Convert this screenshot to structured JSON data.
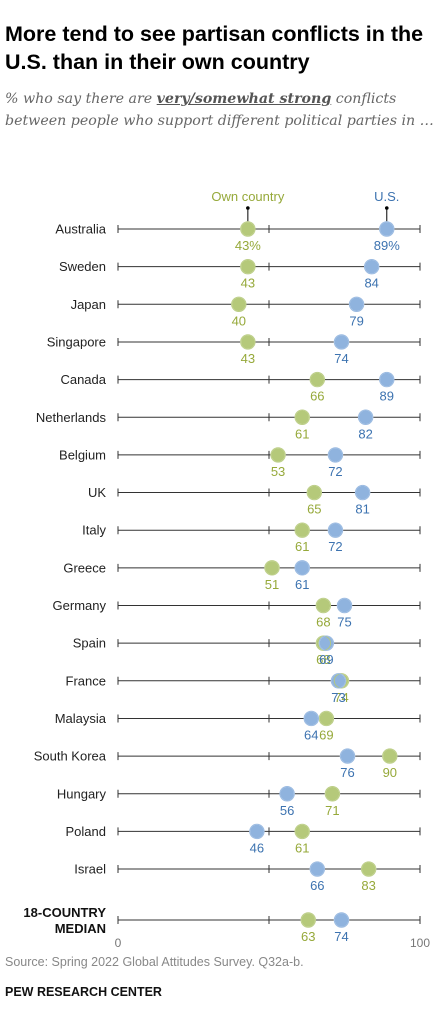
{
  "header": {
    "title": "More tend to see partisan conflicts in the U.S. than in their own country",
    "subtitle_pre": "% who say there are ",
    "subtitle_emph": "very/somewhat strong",
    "subtitle_post": " conflicts between people who support different political parties in …"
  },
  "colors": {
    "own": "#b5c97a",
    "us": "#8fb3de",
    "own_text": "#96a93a",
    "us_text": "#3d73b0",
    "line": "#333333"
  },
  "chart_data": {
    "type": "dot",
    "xlim": [
      0,
      100
    ],
    "tick_labels": [
      "0",
      "100"
    ],
    "legend": {
      "own": "Own country",
      "us": "U.S."
    },
    "countries": [
      "Australia",
      "Sweden",
      "Japan",
      "Singapore",
      "Canada",
      "Netherlands",
      "Belgium",
      "UK",
      "Italy",
      "Greece",
      "Germany",
      "Spain",
      "France",
      "Malaysia",
      "South Korea",
      "Hungary",
      "Poland",
      "Israel"
    ],
    "series": [
      {
        "name": "Own country",
        "values": [
          43,
          43,
          40,
          43,
          66,
          61,
          53,
          65,
          61,
          51,
          68,
          68,
          74,
          69,
          90,
          71,
          61,
          83
        ]
      },
      {
        "name": "U.S.",
        "values": [
          89,
          84,
          79,
          74,
          89,
          82,
          72,
          81,
          72,
          61,
          75,
          69,
          73,
          64,
          76,
          56,
          46,
          66
        ]
      }
    ],
    "value_labels_own": [
      "43%",
      "43",
      "40",
      "43",
      "66",
      "61",
      "53",
      "65",
      "61",
      "51",
      "68",
      "68",
      "74",
      "69",
      "90",
      "71",
      "61",
      "83"
    ],
    "value_labels_us": [
      "89%",
      "84",
      "79",
      "74",
      "89",
      "82",
      "72",
      "81",
      "72",
      "61",
      "75",
      "69",
      "73",
      "64",
      "76",
      "56",
      "46",
      "66"
    ],
    "median": {
      "label_line1": "18-COUNTRY",
      "label_line2": "MEDIAN",
      "own": 63,
      "us": 74
    }
  },
  "source": "Source: Spring 2022 Global Attitudes Survey. Q32a-b.",
  "footer": "PEW RESEARCH CENTER"
}
